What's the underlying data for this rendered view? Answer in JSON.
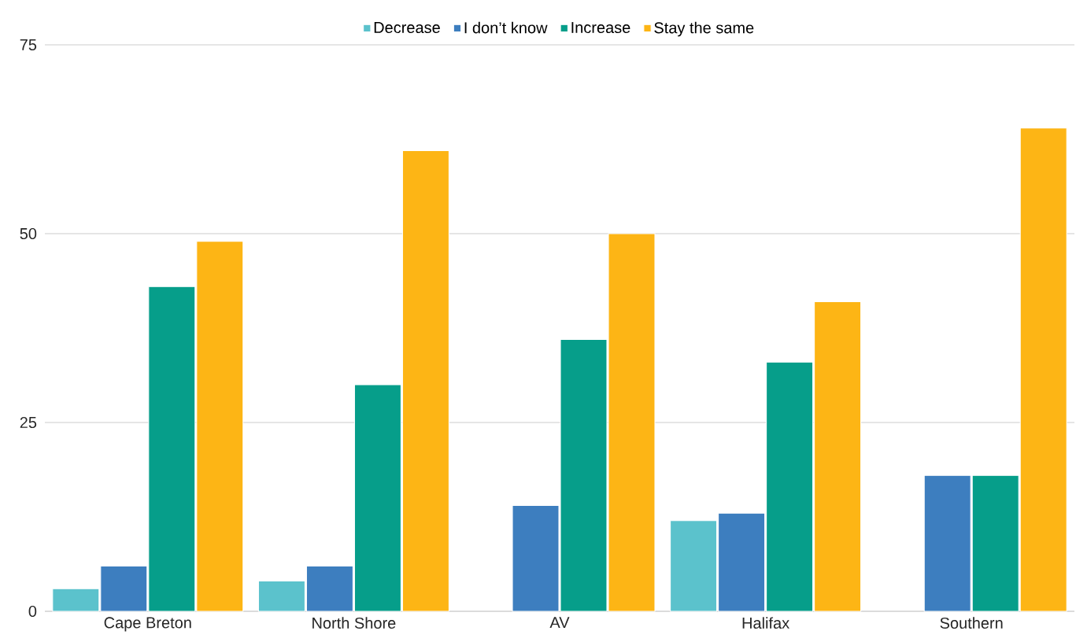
{
  "chart_data": {
    "type": "bar",
    "categories": [
      "Cape Breton",
      "North Shore",
      "AV",
      "Halifax",
      "Southern"
    ],
    "series": [
      {
        "name": "Decrease",
        "color": "#5bc2cc",
        "values": [
          3,
          4,
          null,
          12,
          null
        ]
      },
      {
        "name": "I don’t know",
        "color": "#3d7ebf",
        "values": [
          6,
          6,
          14,
          13,
          18
        ]
      },
      {
        "name": "Increase",
        "color": "#069e8a",
        "values": [
          43,
          30,
          36,
          33,
          18
        ]
      },
      {
        "name": "Stay the same",
        "color": "#fdb515",
        "values": [
          49,
          61,
          50,
          41,
          64
        ]
      }
    ],
    "ylim": [
      0,
      75
    ],
    "yticks": [
      0,
      25,
      50,
      75
    ],
    "grid": "y",
    "legend": "top"
  }
}
